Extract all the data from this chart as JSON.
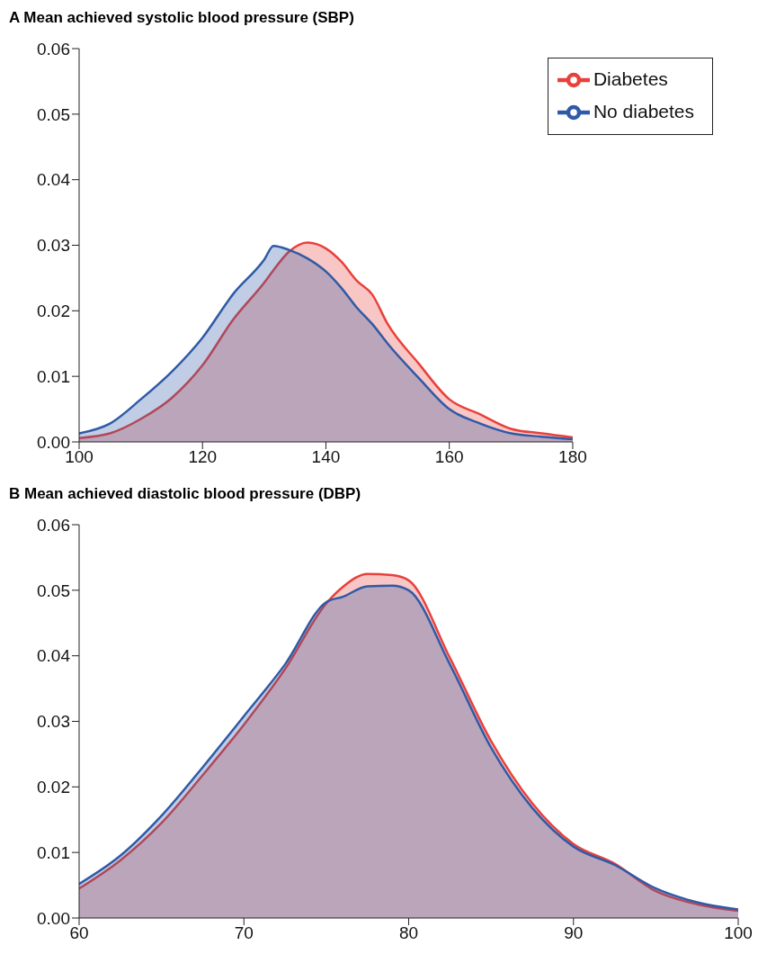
{
  "chart_data": [
    {
      "type": "area",
      "title": "A Mean achieved systolic blood pressure (SBP)",
      "x": [
        100,
        105,
        110,
        115,
        120,
        125,
        130,
        131.5,
        134,
        137,
        140,
        142.5,
        145,
        147.5,
        150,
        155,
        160,
        165,
        170,
        175,
        180
      ],
      "series": [
        {
          "name": "Diabetes",
          "color": "#e8413c",
          "values": [
            0.0006,
            0.0013,
            0.0035,
            0.0067,
            0.0117,
            0.0187,
            0.0243,
            0.0262,
            0.029,
            0.0304,
            0.0295,
            0.0275,
            0.0246,
            0.0225,
            0.018,
            0.012,
            0.0065,
            0.0042,
            0.002,
            0.0013,
            0.0007
          ]
        },
        {
          "name": "No diabetes",
          "color": "#2f5aa6",
          "values": [
            0.0013,
            0.0028,
            0.0065,
            0.0107,
            0.0159,
            0.0226,
            0.0278,
            0.0299,
            0.0293,
            0.028,
            0.026,
            0.0235,
            0.0205,
            0.018,
            0.015,
            0.0098,
            0.005,
            0.0028,
            0.0013,
            0.0008,
            0.0004
          ]
        }
      ],
      "xlim": [
        100,
        180
      ],
      "xticks": [
        100,
        120,
        140,
        160,
        180
      ],
      "ylim": [
        0,
        0.06
      ],
      "yticks": [
        {
          "value": 0,
          "label": "0.00"
        },
        {
          "value": 0.01,
          "label": "0.01"
        },
        {
          "value": 0.02,
          "label": "0.02"
        },
        {
          "value": 0.03,
          "label": "0.03"
        },
        {
          "value": 0.04,
          "label": "0.04"
        },
        {
          "value": 0.05,
          "label": "0.05"
        },
        {
          "value": 0.06,
          "label": "0.06"
        }
      ],
      "legend": "top right"
    },
    {
      "type": "area",
      "title": "B Mean achieved diastolic blood pressure (DBP)",
      "x": [
        60,
        62.5,
        65,
        67.5,
        70,
        72.5,
        75,
        76,
        77.5,
        79,
        80,
        82.5,
        85,
        87.5,
        90,
        92.5,
        95,
        97.5,
        100
      ],
      "series": [
        {
          "color": "#e8413c",
          "values": [
            0.0045,
            0.0088,
            0.0145,
            0.0218,
            0.0295,
            0.038,
            0.048,
            0.0505,
            0.0525,
            0.0523,
            0.0515,
            0.0397,
            0.027,
            0.0175,
            0.0113,
            0.0083,
            0.0041,
            0.0021,
            0.0011
          ]
        },
        {
          "color": "#2f5aa6",
          "values": [
            0.0052,
            0.0095,
            0.0156,
            0.023,
            0.0308,
            0.0387,
            0.0482,
            0.049,
            0.0506,
            0.0507,
            0.05,
            0.0387,
            0.026,
            0.0168,
            0.0109,
            0.0081,
            0.0045,
            0.0024,
            0.0013
          ]
        }
      ],
      "xlim": [
        60,
        100
      ],
      "xticks": [
        60,
        70,
        80,
        90,
        100
      ],
      "ylim": [
        0,
        0.06
      ],
      "yticks": [
        {
          "value": 0,
          "label": "0.00"
        },
        {
          "value": 0.01,
          "label": "0.01"
        },
        {
          "value": 0.02,
          "label": "0.02"
        },
        {
          "value": 0.03,
          "label": "0.03"
        },
        {
          "value": 0.04,
          "label": "0.04"
        },
        {
          "value": 0.05,
          "label": "0.05"
        },
        {
          "value": 0.06,
          "label": "0.06"
        }
      ]
    }
  ]
}
